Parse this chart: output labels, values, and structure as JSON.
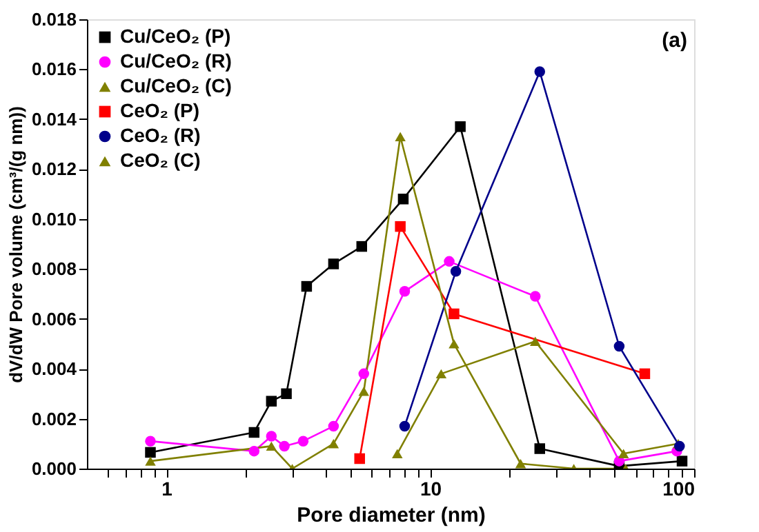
{
  "chart_data": {
    "type": "line",
    "xlabel": "Pore diameter (nm)",
    "ylabel": "dV/dW Pore volume (cm³/(g nm))",
    "annotations": [
      "(a)"
    ],
    "log": "x",
    "xlim": [
      0.5,
      100
    ],
    "xticks": [
      {
        "value": 0.6,
        "label": null
      },
      {
        "value": 0.7,
        "label": null
      },
      {
        "value": 0.8,
        "label": null
      },
      {
        "value": 0.9,
        "label": null
      },
      1,
      {
        "value": 2,
        "label": null
      },
      {
        "value": 3,
        "label": null
      },
      {
        "value": 4,
        "label": null
      },
      {
        "value": 5,
        "label": null
      },
      {
        "value": 6,
        "label": null
      },
      {
        "value": 7,
        "label": null
      },
      {
        "value": 8,
        "label": null
      },
      {
        "value": 9,
        "label": null
      },
      10,
      {
        "value": 20,
        "label": null
      },
      {
        "value": 30,
        "label": null
      },
      {
        "value": 40,
        "label": null
      },
      {
        "value": 50,
        "label": null
      },
      {
        "value": 60,
        "label": null
      },
      {
        "value": 70,
        "label": null
      },
      {
        "value": 80,
        "label": null
      },
      {
        "value": 90,
        "label": null
      },
      100
    ],
    "ylim": [
      0,
      0.018
    ],
    "yticks": [
      {
        "value": 0,
        "label": "0.000"
      },
      0.002,
      0.004,
      0.006,
      0.008,
      {
        "value": 0.01,
        "label": "0.010"
      },
      0.012,
      0.014,
      0.016,
      0.018
    ],
    "grid": false,
    "legend": "top left",
    "line_style": "solid",
    "series": [
      {
        "name": "Cu/CeO₂ (P)",
        "color": "#000000",
        "marker": "square",
        "x": [
          0.87,
          2.15,
          2.5,
          2.85,
          3.4,
          4.3,
          5.5,
          7.9,
          13,
          26,
          52,
          90
        ],
        "values": [
          0.00065,
          0.00145,
          0.0027,
          0.003,
          0.0073,
          0.0082,
          0.0089,
          0.0108,
          0.0137,
          0.0008,
          0.0001,
          0.0003
        ]
      },
      {
        "name": "Cu/CeO₂ (R)",
        "color": "#ff00ff",
        "marker": "circle",
        "x": [
          0.87,
          2.15,
          2.5,
          2.8,
          3.3,
          4.3,
          5.6,
          8,
          11.8,
          25,
          52,
          86
        ],
        "values": [
          0.0011,
          0.0007,
          0.0013,
          0.0009,
          0.0011,
          0.0017,
          0.0038,
          0.0071,
          0.0083,
          0.0069,
          0.0003,
          0.0007
        ]
      },
      {
        "name": "Cu/CeO₂ (C)",
        "color": "#808000",
        "marker": "triangle",
        "x": [
          7.5,
          11,
          25,
          54,
          87
        ],
        "values": [
          0.0006,
          0.0038,
          0.0051,
          0.0006,
          0.001
        ]
      },
      {
        "name": "CeO₂ (P)",
        "color": "#ff0000",
        "marker": "square",
        "x": [
          5.4,
          7.7,
          12.3,
          65
        ],
        "values": [
          0.0004,
          0.0097,
          0.0062,
          0.0038
        ]
      },
      {
        "name": "CeO₂ (R)",
        "color": "#00008b",
        "marker": "circle",
        "x": [
          8,
          12.5,
          26,
          52,
          88
        ],
        "values": [
          0.0017,
          0.0079,
          0.0159,
          0.0049,
          0.0009
        ]
      },
      {
        "name": "CeO₂ (C)",
        "color": "#808000",
        "marker": "triangle",
        "x": [
          0.87,
          2.5,
          3,
          4.3,
          5.6,
          7.7,
          12.3,
          22,
          35,
          55
        ],
        "values": [
          0.0003,
          0.0009,
          0.0,
          0.001,
          0.0031,
          0.0133,
          0.005,
          0.0002,
          0.0,
          0.0
        ]
      }
    ]
  }
}
